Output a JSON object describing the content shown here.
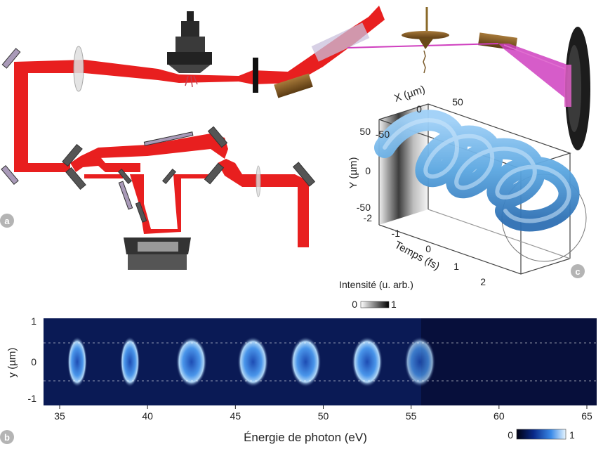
{
  "panels": {
    "a": {
      "badge": "a"
    },
    "b": {
      "badge": "b"
    },
    "c": {
      "badge": "c"
    }
  },
  "panel_c": {
    "x_axis": {
      "label": "X (µm)",
      "ticks": [
        "-50",
        "0",
        "50"
      ]
    },
    "y_axis": {
      "label": "Y (µm)",
      "ticks": [
        "50",
        "0",
        "-50"
      ]
    },
    "t_axis": {
      "label": "Temps (fs)",
      "ticks": [
        "-2",
        "-1",
        "0",
        "1",
        "2"
      ]
    },
    "colorbar": {
      "title": "Intensité (u. arb.)",
      "min": "0",
      "max": "1"
    }
  },
  "panel_b": {
    "x_label": "Énergie de photon (eV)",
    "y_label": "y (µm)",
    "x_ticks": [
      "35",
      "40",
      "45",
      "50",
      "55",
      "60",
      "65"
    ],
    "y_ticks": [
      "1",
      "0",
      "-1"
    ],
    "colorbar": {
      "min": "0",
      "max": "1"
    },
    "harmonic_blobs_eV": [
      36,
      39,
      42.5,
      46,
      49,
      52.5,
      55.5
    ]
  },
  "colors": {
    "beam": "#e81f1f",
    "helix": "#5aa6e0",
    "badge": "#b4b4b4",
    "spectrum_bg": "#0a1a55",
    "xuv_beam": "#cf3fbf"
  }
}
